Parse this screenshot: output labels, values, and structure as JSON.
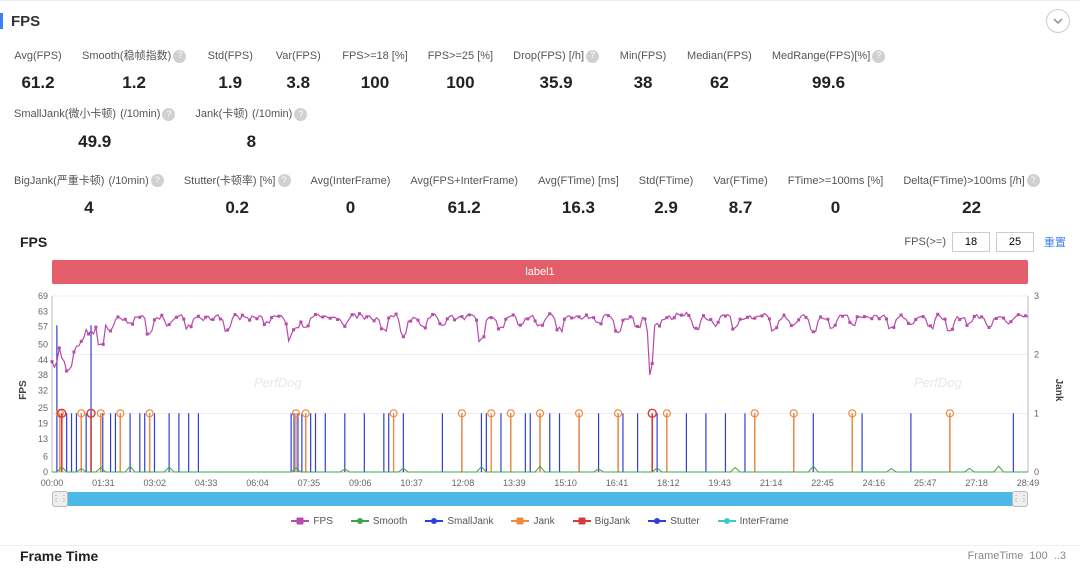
{
  "panel": {
    "title": "FPS"
  },
  "metrics_row1": [
    {
      "label": "Avg(FPS)",
      "value": "61.2",
      "help": false
    },
    {
      "label": "Smooth(稳帧指数)",
      "value": "1.2",
      "help": true
    },
    {
      "label": "Std(FPS)",
      "value": "1.9",
      "help": false
    },
    {
      "label": "Var(FPS)",
      "value": "3.8",
      "help": false
    },
    {
      "label": "FPS>=18 [%]",
      "value": "100",
      "help": false
    },
    {
      "label": "FPS>=25 [%]",
      "value": "100",
      "help": false
    },
    {
      "label": "Drop(FPS) [/h]",
      "value": "35.9",
      "help": true
    },
    {
      "label": "Min(FPS)",
      "value": "38",
      "help": false
    },
    {
      "label": "Median(FPS)",
      "value": "62",
      "help": false
    },
    {
      "label": "MedRange(FPS)[%]",
      "value": "99.6",
      "help": true
    },
    {
      "label": "SmallJank(微小卡顿)\n(/10min)",
      "value": "49.9",
      "help": true
    },
    {
      "label": "Jank(卡顿)\n(/10min)",
      "value": "8",
      "help": true
    }
  ],
  "metrics_row2": [
    {
      "label": "BigJank(严重卡顿)\n(/10min)",
      "value": "4",
      "help": true
    },
    {
      "label": "Stutter(卡顿率) [%]",
      "value": "0.2",
      "help": true
    },
    {
      "label": "Avg(InterFrame)",
      "value": "0",
      "help": false
    },
    {
      "label": "Avg(FPS+InterFrame)",
      "value": "61.2",
      "help": false
    },
    {
      "label": "Avg(FTime) [ms]",
      "value": "16.3",
      "help": false
    },
    {
      "label": "Std(FTime)",
      "value": "2.9",
      "help": false
    },
    {
      "label": "Var(FTime)",
      "value": "8.7",
      "help": false
    },
    {
      "label": "FTime>=100ms [%]",
      "value": "0",
      "help": false
    },
    {
      "label": "Delta(FTime)>100ms [/h]",
      "value": "22",
      "help": true
    }
  ],
  "chart": {
    "sub_title": "FPS",
    "fps_gte_label": "FPS(>=)",
    "threshold1": "18",
    "threshold2": "25",
    "reset": "重置",
    "banner": "label1",
    "y_left": {
      "label": "FPS",
      "ticks": [
        0,
        6,
        13,
        19,
        25,
        32,
        38,
        44,
        50,
        57,
        63,
        69
      ],
      "min": 0,
      "max": 69
    },
    "y_right": {
      "label": "Jank",
      "ticks": [
        0,
        1,
        2,
        3
      ],
      "min": 0,
      "max": 3
    },
    "x_ticks": [
      "00:00",
      "01:31",
      "03:02",
      "04:33",
      "06:04",
      "07:35",
      "09:06",
      "10:37",
      "12:08",
      "13:39",
      "15:10",
      "16:41",
      "18:12",
      "19:43",
      "21:14",
      "22:45",
      "24:16",
      "25:47",
      "27:18",
      "28:49"
    ],
    "colors": {
      "fps": "#b84ba8",
      "smooth": "#3fa648",
      "smalljank": "#2e3fd8",
      "jank": "#f08a3c",
      "bigjank": "#d73a3a",
      "stutter": "#2e3fd8",
      "interframe": "#3fc9c9",
      "grid": "#dddddd",
      "axis": "#bbbbbb"
    },
    "fps_baseline": 61,
    "fps_dips": [
      {
        "t": 0.0,
        "v": 46
      },
      {
        "t": 0.004,
        "v": 38
      },
      {
        "t": 0.008,
        "v": 50
      },
      {
        "t": 0.012,
        "v": 44
      },
      {
        "t": 0.018,
        "v": 40
      },
      {
        "t": 0.025,
        "v": 48
      },
      {
        "t": 0.032,
        "v": 52
      },
      {
        "t": 0.04,
        "v": 55
      },
      {
        "t": 0.05,
        "v": 50
      },
      {
        "t": 0.06,
        "v": 56
      },
      {
        "t": 0.08,
        "v": 58
      },
      {
        "t": 0.1,
        "v": 55
      },
      {
        "t": 0.12,
        "v": 58
      },
      {
        "t": 0.14,
        "v": 57
      },
      {
        "t": 0.18,
        "v": 56
      },
      {
        "t": 0.22,
        "v": 58
      },
      {
        "t": 0.245,
        "v": 52
      },
      {
        "t": 0.25,
        "v": 56
      },
      {
        "t": 0.26,
        "v": 57
      },
      {
        "t": 0.3,
        "v": 58
      },
      {
        "t": 0.34,
        "v": 56
      },
      {
        "t": 0.36,
        "v": 54
      },
      {
        "t": 0.38,
        "v": 57
      },
      {
        "t": 0.4,
        "v": 58
      },
      {
        "t": 0.44,
        "v": 52
      },
      {
        "t": 0.46,
        "v": 56
      },
      {
        "t": 0.48,
        "v": 58
      },
      {
        "t": 0.5,
        "v": 57
      },
      {
        "t": 0.52,
        "v": 56
      },
      {
        "t": 0.56,
        "v": 58
      },
      {
        "t": 0.58,
        "v": 55
      },
      {
        "t": 0.6,
        "v": 57
      },
      {
        "t": 0.615,
        "v": 38
      },
      {
        "t": 0.62,
        "v": 58
      },
      {
        "t": 0.66,
        "v": 56
      },
      {
        "t": 0.68,
        "v": 58
      },
      {
        "t": 0.7,
        "v": 57
      },
      {
        "t": 0.74,
        "v": 56
      },
      {
        "t": 0.76,
        "v": 58
      },
      {
        "t": 0.78,
        "v": 55
      },
      {
        "t": 0.8,
        "v": 57
      },
      {
        "t": 0.82,
        "v": 58
      },
      {
        "t": 0.86,
        "v": 56
      },
      {
        "t": 0.88,
        "v": 58
      },
      {
        "t": 0.9,
        "v": 57
      },
      {
        "t": 0.92,
        "v": 56
      },
      {
        "t": 0.94,
        "v": 58
      },
      {
        "t": 0.96,
        "v": 57
      },
      {
        "t": 0.98,
        "v": 58
      }
    ],
    "smalljank_spikes": [
      0.005,
      0.01,
      0.015,
      0.02,
      0.025,
      0.03,
      0.035,
      0.04,
      0.05,
      0.052,
      0.06,
      0.065,
      0.07,
      0.08,
      0.09,
      0.095,
      0.1,
      0.105,
      0.12,
      0.13,
      0.14,
      0.15,
      0.245,
      0.248,
      0.252,
      0.256,
      0.26,
      0.265,
      0.27,
      0.28,
      0.3,
      0.32,
      0.34,
      0.345,
      0.36,
      0.4,
      0.42,
      0.44,
      0.445,
      0.46,
      0.47,
      0.485,
      0.49,
      0.5,
      0.51,
      0.52,
      0.54,
      0.56,
      0.58,
      0.585,
      0.6,
      0.62,
      0.63,
      0.65,
      0.67,
      0.69,
      0.71,
      0.72,
      0.76,
      0.78,
      0.82,
      0.83,
      0.88,
      0.92,
      0.985
    ],
    "smalljank_heights": {
      "0.005": 2.5,
      "0.04": 2.5,
      "0.615": 2.5
    },
    "jank_spikes": [
      0.008,
      0.03,
      0.05,
      0.07,
      0.1,
      0.25,
      0.26,
      0.35,
      0.42,
      0.45,
      0.47,
      0.5,
      0.54,
      0.58,
      0.63,
      0.72,
      0.76,
      0.82,
      0.92
    ],
    "bigjank_spikes": [
      0.01,
      0.04,
      0.615
    ],
    "smooth_blips": [
      0.01,
      0.03,
      0.05,
      0.08,
      0.12,
      0.25,
      0.3,
      0.36,
      0.44,
      0.5,
      0.56,
      0.62,
      0.7,
      0.78,
      0.86,
      0.94,
      0.97
    ],
    "legend": [
      {
        "name": "FPS",
        "color": "#b84ba8",
        "shape": "box"
      },
      {
        "name": "Smooth",
        "color": "#3fa648",
        "shape": "line"
      },
      {
        "name": "SmallJank",
        "color": "#2e3fd8",
        "shape": "line"
      },
      {
        "name": "Jank",
        "color": "#f08a3c",
        "shape": "box"
      },
      {
        "name": "BigJank",
        "color": "#d73a3a",
        "shape": "box"
      },
      {
        "name": "Stutter",
        "color": "#2e3fd8",
        "shape": "line"
      },
      {
        "name": "InterFrame",
        "color": "#3fc9c9",
        "shape": "line"
      }
    ]
  },
  "frametime": {
    "title": "Frame Time",
    "label": "FrameTime",
    "v1": "100",
    "v2": "..3"
  },
  "watermarks": [
    "PerfDog",
    "PerfDog",
    "PerfDog",
    "PerfDog"
  ]
}
